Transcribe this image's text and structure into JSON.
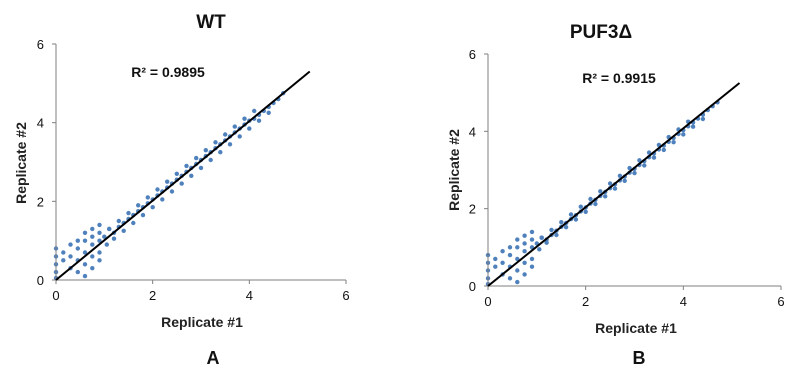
{
  "chart_data": [
    {
      "type": "scatter",
      "title": "WT",
      "panel_label": "A",
      "xlabel": "Replicate #1",
      "ylabel": "Replicate #2",
      "xlim": [
        0,
        6
      ],
      "ylim": [
        0,
        6
      ],
      "xticks": [
        "0",
        "2",
        "4",
        "6"
      ],
      "yticks": [
        "0",
        "2",
        "4",
        "6"
      ],
      "annotation": "R² = 0.9895",
      "r_squared": 0.9895,
      "grid": false,
      "point_color": "#4f81bd",
      "line_color": "#000000",
      "trendline": {
        "x": [
          0,
          5.25
        ],
        "y": [
          0,
          5.3
        ]
      },
      "series": [
        {
          "x": [
            0,
            0,
            0,
            0,
            0,
            0.15,
            0.15,
            0.3,
            0.3,
            0.3,
            0.45,
            0.45,
            0.45,
            0.45,
            0.6,
            0.6,
            0.6,
            0.6,
            0.6,
            0.75,
            0.75,
            0.75,
            0.75,
            0.75,
            0.9,
            0.9,
            0.9,
            0.9,
            0.9,
            1.0,
            1.05,
            1.1,
            1.2,
            1.3,
            1.4,
            1.5,
            1.6,
            1.7,
            1.8,
            1.9,
            2.0,
            2.1,
            2.2,
            2.3,
            2.4,
            2.5,
            2.6,
            2.7,
            2.8,
            2.9,
            3.0,
            3.1,
            3.2,
            3.3,
            3.4,
            3.5,
            3.6,
            3.7,
            3.8,
            3.9,
            4.0,
            4.1,
            4.2,
            4.3,
            4.4,
            4.5,
            4.6,
            4.7,
            1.2,
            1.4,
            1.6,
            1.8,
            2.0,
            2.2,
            2.4,
            2.6,
            2.8,
            3.0,
            3.2,
            3.4,
            3.6,
            3.8,
            4.0,
            4.2,
            4.4,
            1.1,
            1.3,
            1.5,
            1.7,
            1.9,
            2.1,
            2.3,
            2.5,
            2.7,
            2.9,
            3.1,
            3.3,
            3.5,
            3.7,
            3.9,
            4.1
          ],
          "y": [
            0.2,
            0.4,
            0.6,
            0.8,
            0.05,
            0.5,
            0.7,
            0.3,
            0.6,
            0.9,
            0.2,
            0.5,
            0.8,
            1.0,
            0.1,
            0.4,
            0.7,
            1.0,
            1.2,
            0.3,
            0.6,
            0.9,
            1.1,
            1.3,
            0.7,
            1.0,
            1.2,
            1.4,
            0.5,
            1.1,
            0.9,
            1.3,
            1.2,
            1.35,
            1.45,
            1.55,
            1.65,
            1.75,
            1.85,
            1.95,
            2.05,
            2.15,
            2.25,
            2.35,
            2.45,
            2.55,
            2.65,
            2.75,
            2.85,
            2.95,
            3.05,
            3.15,
            3.25,
            3.35,
            3.45,
            3.55,
            3.65,
            3.75,
            3.85,
            3.95,
            4.05,
            4.1,
            4.2,
            4.3,
            4.4,
            4.5,
            4.6,
            4.75,
            1.05,
            1.25,
            1.45,
            1.65,
            1.85,
            2.05,
            2.25,
            2.45,
            2.65,
            2.85,
            3.05,
            3.25,
            3.45,
            3.65,
            3.85,
            4.05,
            4.25,
            1.3,
            1.5,
            1.7,
            1.9,
            2.1,
            2.3,
            2.5,
            2.7,
            2.9,
            3.1,
            3.3,
            3.5,
            3.7,
            3.9,
            4.1,
            4.3
          ]
        }
      ]
    },
    {
      "type": "scatter",
      "title": "PUF3Δ",
      "panel_label": "B",
      "xlabel": "Replicate #1",
      "ylabel": "Replicate #2",
      "xlim": [
        0,
        6
      ],
      "ylim": [
        0,
        6
      ],
      "xticks": [
        "0",
        "2",
        "4",
        "6"
      ],
      "yticks": [
        "0",
        "2",
        "4",
        "6"
      ],
      "annotation": "R² = 0.9915",
      "r_squared": 0.9915,
      "grid": false,
      "point_color": "#4f81bd",
      "line_color": "#000000",
      "trendline": {
        "x": [
          0,
          5.15
        ],
        "y": [
          0,
          5.25
        ]
      },
      "series": [
        {
          "x": [
            0,
            0,
            0,
            0,
            0,
            0.15,
            0.15,
            0.3,
            0.3,
            0.3,
            0.45,
            0.45,
            0.45,
            0.45,
            0.6,
            0.6,
            0.6,
            0.6,
            0.6,
            0.75,
            0.75,
            0.75,
            0.75,
            0.75,
            0.9,
            0.9,
            0.9,
            0.9,
            0.9,
            1.0,
            1.05,
            1.1,
            1.2,
            1.3,
            1.4,
            1.5,
            1.6,
            1.7,
            1.8,
            1.9,
            2.0,
            2.1,
            2.2,
            2.3,
            2.4,
            2.5,
            2.6,
            2.7,
            2.8,
            2.9,
            3.0,
            3.1,
            3.2,
            3.3,
            3.4,
            3.5,
            3.6,
            3.7,
            3.8,
            3.9,
            4.0,
            4.1,
            4.2,
            4.3,
            4.4,
            4.5,
            4.6,
            4.7,
            1.2,
            1.4,
            1.6,
            1.8,
            2.0,
            2.2,
            2.4,
            2.6,
            2.8,
            3.0,
            3.2,
            3.4,
            3.6,
            3.8,
            4.0,
            4.2,
            4.4,
            1.1,
            1.3,
            1.5,
            1.7,
            1.9,
            2.1,
            2.3,
            2.5,
            2.7,
            2.9,
            3.1,
            3.3,
            3.5,
            3.7,
            3.9,
            4.1
          ],
          "y": [
            0.2,
            0.4,
            0.6,
            0.8,
            0.05,
            0.5,
            0.7,
            0.3,
            0.6,
            0.9,
            0.2,
            0.5,
            0.8,
            1.0,
            0.1,
            0.4,
            0.7,
            1.0,
            1.2,
            0.3,
            0.6,
            0.9,
            1.1,
            1.3,
            0.7,
            1.0,
            1.2,
            1.4,
            0.5,
            1.1,
            0.95,
            1.25,
            1.2,
            1.32,
            1.43,
            1.53,
            1.63,
            1.73,
            1.83,
            1.93,
            2.03,
            2.13,
            2.23,
            2.33,
            2.43,
            2.53,
            2.63,
            2.73,
            2.83,
            2.93,
            3.03,
            3.13,
            3.23,
            3.33,
            3.43,
            3.53,
            3.63,
            3.73,
            3.83,
            3.93,
            4.03,
            4.13,
            4.23,
            4.33,
            4.43,
            4.55,
            4.65,
            4.75,
            1.12,
            1.32,
            1.52,
            1.72,
            1.92,
            2.12,
            2.32,
            2.52,
            2.72,
            2.92,
            3.12,
            3.32,
            3.52,
            3.72,
            3.92,
            4.12,
            4.32,
            1.25,
            1.45,
            1.65,
            1.85,
            2.05,
            2.25,
            2.45,
            2.65,
            2.85,
            3.05,
            3.25,
            3.45,
            3.65,
            3.85,
            4.05,
            4.25
          ]
        }
      ]
    }
  ]
}
